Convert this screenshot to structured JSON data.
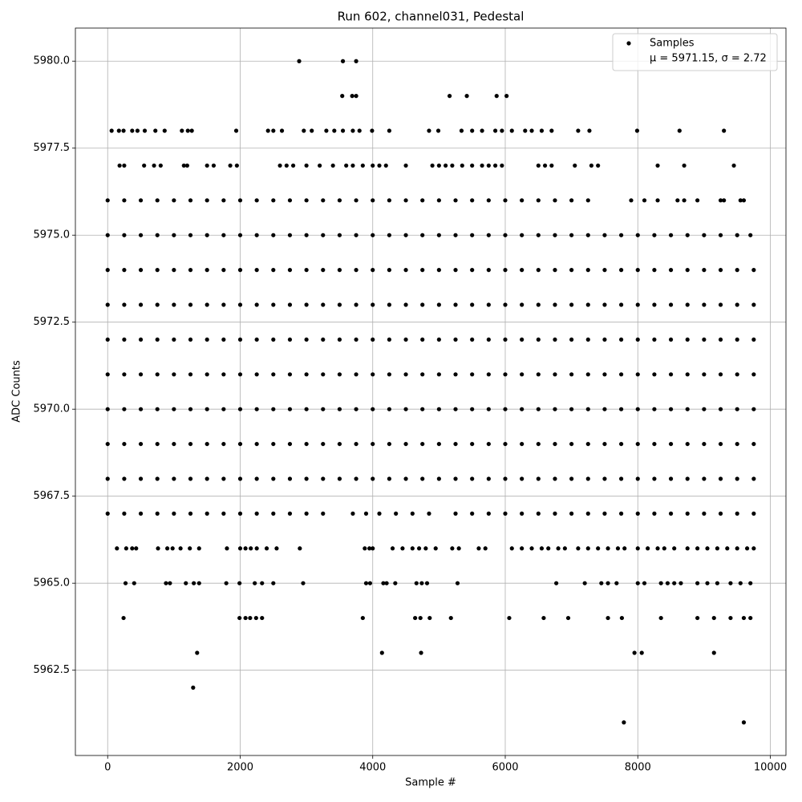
{
  "chart_data": {
    "type": "scatter",
    "title": "Run 602, channel031, Pedestal",
    "x_label": "Sample #",
    "y_label": "ADC Counts",
    "xlim": [
      -487,
      10236
    ],
    "ylim": [
      5960.05,
      5980.95
    ],
    "xticks": [
      0,
      2000,
      4000,
      6000,
      8000,
      10000
    ],
    "yticks": [
      {
        "value": 5962.5,
        "label": "5962.5"
      },
      {
        "value": 5965,
        "label": "5965.0"
      },
      {
        "value": 5967.5,
        "label": "5967.5"
      },
      {
        "value": 5970,
        "label": "5970.0"
      },
      {
        "value": 5972.5,
        "label": "5972.5"
      },
      {
        "value": 5975,
        "label": "5975.0"
      },
      {
        "value": 5977.5,
        "label": "5977.5"
      },
      {
        "value": 5980,
        "label": "5980.0"
      }
    ],
    "grid": true,
    "legend": "upper right",
    "legend_note": "μ = 5971.15, σ = 2.72",
    "x": [
      0,
      250,
      500,
      750,
      1000,
      1250,
      1500,
      1750,
      2000,
      2250,
      2500,
      2750,
      3000,
      3250,
      3500,
      3750,
      4000,
      4250,
      4500,
      4750,
      5000,
      5250,
      5500,
      5750,
      6000,
      6250,
      6500,
      6750,
      7000,
      7250,
      7500,
      7750,
      8000,
      8250,
      8500,
      8750,
      9000,
      9250,
      9500,
      9750,
      0,
      250,
      500,
      750,
      1000,
      1250,
      1500,
      1750,
      2000,
      2250,
      2500,
      2750,
      3000,
      3250,
      3500,
      3750,
      4000,
      4250,
      4500,
      4750,
      5000,
      5250,
      5500,
      5750,
      6000,
      6250,
      6500,
      6750,
      7000,
      7250,
      7500,
      7750,
      8000,
      8250,
      8500,
      8750,
      9000,
      9250,
      9500,
      9750,
      0,
      250,
      500,
      750,
      1000,
      1250,
      1500,
      1750,
      2000,
      2250,
      2500,
      2750,
      3000,
      3250,
      3500,
      3750,
      4000,
      4250,
      4500,
      4750,
      5000,
      5250,
      5500,
      5750,
      6000,
      6250,
      6500,
      6750,
      7000,
      7250,
      7500,
      7750,
      8000,
      8250,
      8500,
      8750,
      9000,
      9250,
      9500,
      9750,
      0,
      250,
      500,
      750,
      1000,
      1250,
      1500,
      1750,
      2000,
      2250,
      2500,
      2750,
      3000,
      3250,
      3500,
      3750,
      4000,
      4250,
      4500,
      4750,
      5000,
      5250,
      5500,
      5750,
      6000,
      6250,
      6500,
      6750,
      7000,
      7250,
      7500,
      7750,
      8000,
      8250,
      8500,
      8750,
      9000,
      9250,
      9500,
      9750,
      0,
      250,
      500,
      750,
      1000,
      1250,
      1500,
      1750,
      2000,
      2250,
      2500,
      2750,
      3000,
      3250,
      3500,
      3750,
      4000,
      4250,
      4500,
      4750,
      5000,
      5250,
      5500,
      5750,
      6000,
      6250,
      6500,
      6750,
      7000,
      7250,
      7500,
      7750,
      8000,
      8250,
      8500,
      8750,
      9000,
      9250,
      9500,
      9750,
      0,
      250,
      500,
      750,
      1000,
      1250,
      1500,
      1750,
      2000,
      2250,
      2500,
      2750,
      3000,
      3250,
      3500,
      3750,
      4000,
      4250,
      4500,
      4750,
      5000,
      5250,
      5500,
      5750,
      6000,
      6250,
      6500,
      6750,
      7000,
      7250,
      7500,
      7750,
      8000,
      8250,
      8500,
      8750,
      9000,
      9250,
      9500,
      9750,
      0,
      250,
      500,
      750,
      1000,
      1250,
      1500,
      1750,
      2000,
      2250,
      2500,
      2750,
      3000,
      3250,
      3500,
      3750,
      4000,
      4250,
      4500,
      4750,
      5000,
      5250,
      5500,
      5750,
      6000,
      6250,
      6500,
      6750,
      7000,
      7250,
      7500,
      7750,
      8000,
      8250,
      8500,
      8750,
      9000,
      9250,
      9500,
      9750,
      0,
      250,
      500,
      750,
      1000,
      1250,
      1500,
      1750,
      2000,
      2250,
      2500,
      2750,
      3000,
      3250,
      3500,
      3750,
      4000,
      4250,
      4500,
      4750,
      5000,
      5250,
      5500,
      5750,
      6000,
      6250,
      6500,
      6750,
      7000,
      7250,
      7500,
      7750,
      8000,
      8250,
      8500,
      8750,
      9000,
      9250,
      9500,
      9700,
      0,
      250,
      500,
      750,
      1000,
      1250,
      1500,
      1750,
      2000,
      2250,
      2500,
      2750,
      3000,
      3250,
      3500,
      3750,
      4000,
      4250,
      4500,
      4750,
      5000,
      5250,
      5500,
      5750,
      6000,
      6250,
      6500,
      6750,
      7000,
      7250,
      7900,
      8100,
      8300,
      8600,
      8700,
      8900,
      9250,
      9300,
      9550,
      9600,
      0,
      250,
      500,
      750,
      1000,
      1250,
      1500,
      1750,
      2000,
      2250,
      2500,
      2750,
      3000,
      3250,
      3700,
      3900,
      4100,
      4350,
      4600,
      4850,
      5250,
      5500,
      5750,
      6000,
      6250,
      6500,
      6750,
      7000,
      7250,
      7500,
      7750,
      8000,
      8250,
      8500,
      8750,
      9000,
      9250,
      9500,
      9750,
      140,
      280,
      370,
      430,
      760,
      900,
      980,
      1100,
      1240,
      1380,
      1800,
      2000,
      2080,
      2160,
      2250,
      2400,
      2550,
      2900,
      3880,
      3950,
      4000,
      4300,
      4450,
      4600,
      4700,
      4800,
      4950,
      5200,
      5300,
      5600,
      5700,
      6100,
      6250,
      6400,
      6550,
      6650,
      6800,
      6900,
      7100,
      7250,
      7400,
      7550,
      7700,
      7800,
      8000,
      8150,
      8300,
      8400,
      8550,
      8750,
      8900,
      9050,
      9200,
      9350,
      9500,
      9650,
      9750,
      270,
      400,
      880,
      940,
      1180,
      1300,
      1380,
      1790,
      1990,
      2220,
      2330,
      2500,
      2950,
      3900,
      3960,
      4160,
      4210,
      4340,
      4660,
      4740,
      4820,
      5280,
      6770,
      7200,
      7450,
      7550,
      7680,
      8000,
      8100,
      8350,
      8450,
      8550,
      8650,
      8900,
      9050,
      9200,
      9400,
      9550,
      9700,
      240,
      1990,
      2080,
      2150,
      2240,
      2330,
      3850,
      4640,
      4720,
      4860,
      5180,
      6060,
      6580,
      6950,
      7550,
      7760,
      8350,
      8900,
      9150,
      9400,
      9600,
      9700,
      1350,
      4140,
      4730,
      7950,
      8060,
      9150,
      1290,
      7790,
      9600,
      180,
      250,
      550,
      700,
      800,
      1150,
      1200,
      1500,
      1600,
      1850,
      1950,
      2600,
      2700,
      2800,
      3000,
      3200,
      3400,
      3600,
      3700,
      3850,
      4000,
      4100,
      4200,
      4500,
      4900,
      5000,
      5100,
      5200,
      5350,
      5500,
      5650,
      5750,
      5850,
      5950,
      6500,
      6600,
      6700,
      7050,
      7300,
      7400,
      8300,
      8700,
      9450,
      60,
      170,
      240,
      370,
      450,
      560,
      720,
      860,
      1120,
      1210,
      1270,
      1940,
      2420,
      2500,
      2630,
      2960,
      3080,
      3300,
      3420,
      3550,
      3700,
      3800,
      3990,
      4250,
      4850,
      4990,
      5340,
      5500,
      5650,
      5850,
      5950,
      6100,
      6300,
      6400,
      6550,
      6700,
      7100,
      7270,
      7990,
      8630,
      9300,
      3540,
      3690,
      3750,
      5160,
      5420,
      5870,
      6020,
      2890,
      3550,
      3750
    ],
    "series": [
      {
        "name": "Samples",
        "color": "#000000",
        "values": [
          5968,
          5968,
          5968,
          5968,
          5968,
          5968,
          5968,
          5968,
          5968,
          5968,
          5968,
          5968,
          5968,
          5968,
          5968,
          5968,
          5968,
          5968,
          5968,
          5968,
          5968,
          5968,
          5968,
          5968,
          5968,
          5968,
          5968,
          5968,
          5968,
          5968,
          5968,
          5968,
          5968,
          5968,
          5968,
          5968,
          5968,
          5968,
          5968,
          5968,
          5969,
          5969,
          5969,
          5969,
          5969,
          5969,
          5969,
          5969,
          5969,
          5969,
          5969,
          5969,
          5969,
          5969,
          5969,
          5969,
          5969,
          5969,
          5969,
          5969,
          5969,
          5969,
          5969,
          5969,
          5969,
          5969,
          5969,
          5969,
          5969,
          5969,
          5969,
          5969,
          5969,
          5969,
          5969,
          5969,
          5969,
          5969,
          5969,
          5969,
          5970,
          5970,
          5970,
          5970,
          5970,
          5970,
          5970,
          5970,
          5970,
          5970,
          5970,
          5970,
          5970,
          5970,
          5970,
          5970,
          5970,
          5970,
          5970,
          5970,
          5970,
          5970,
          5970,
          5970,
          5970,
          5970,
          5970,
          5970,
          5970,
          5970,
          5970,
          5970,
          5970,
          5970,
          5970,
          5970,
          5970,
          5970,
          5970,
          5970,
          5971,
          5971,
          5971,
          5971,
          5971,
          5971,
          5971,
          5971,
          5971,
          5971,
          5971,
          5971,
          5971,
          5971,
          5971,
          5971,
          5971,
          5971,
          5971,
          5971,
          5971,
          5971,
          5971,
          5971,
          5971,
          5971,
          5971,
          5971,
          5971,
          5971,
          5971,
          5971,
          5971,
          5971,
          5971,
          5971,
          5971,
          5971,
          5971,
          5971,
          5972,
          5972,
          5972,
          5972,
          5972,
          5972,
          5972,
          5972,
          5972,
          5972,
          5972,
          5972,
          5972,
          5972,
          5972,
          5972,
          5972,
          5972,
          5972,
          5972,
          5972,
          5972,
          5972,
          5972,
          5972,
          5972,
          5972,
          5972,
          5972,
          5972,
          5972,
          5972,
          5972,
          5972,
          5972,
          5972,
          5972,
          5972,
          5972,
          5972,
          5973,
          5973,
          5973,
          5973,
          5973,
          5973,
          5973,
          5973,
          5973,
          5973,
          5973,
          5973,
          5973,
          5973,
          5973,
          5973,
          5973,
          5973,
          5973,
          5973,
          5973,
          5973,
          5973,
          5973,
          5973,
          5973,
          5973,
          5973,
          5973,
          5973,
          5973,
          5973,
          5973,
          5973,
          5973,
          5973,
          5973,
          5973,
          5973,
          5973,
          5974,
          5974,
          5974,
          5974,
          5974,
          5974,
          5974,
          5974,
          5974,
          5974,
          5974,
          5974,
          5974,
          5974,
          5974,
          5974,
          5974,
          5974,
          5974,
          5974,
          5974,
          5974,
          5974,
          5974,
          5974,
          5974,
          5974,
          5974,
          5974,
          5974,
          5974,
          5974,
          5974,
          5974,
          5974,
          5974,
          5974,
          5974,
          5974,
          5974,
          5975,
          5975,
          5975,
          5975,
          5975,
          5975,
          5975,
          5975,
          5975,
          5975,
          5975,
          5975,
          5975,
          5975,
          5975,
          5975,
          5975,
          5975,
          5975,
          5975,
          5975,
          5975,
          5975,
          5975,
          5975,
          5975,
          5975,
          5975,
          5975,
          5975,
          5975,
          5975,
          5975,
          5975,
          5975,
          5975,
          5975,
          5975,
          5975,
          5975,
          5976,
          5976,
          5976,
          5976,
          5976,
          5976,
          5976,
          5976,
          5976,
          5976,
          5976,
          5976,
          5976,
          5976,
          5976,
          5976,
          5976,
          5976,
          5976,
          5976,
          5976,
          5976,
          5976,
          5976,
          5976,
          5976,
          5976,
          5976,
          5976,
          5976,
          5976,
          5976,
          5976,
          5976,
          5976,
          5976,
          5976,
          5976,
          5976,
          5976,
          5967,
          5967,
          5967,
          5967,
          5967,
          5967,
          5967,
          5967,
          5967,
          5967,
          5967,
          5967,
          5967,
          5967,
          5967,
          5967,
          5967,
          5967,
          5967,
          5967,
          5967,
          5967,
          5967,
          5967,
          5967,
          5967,
          5967,
          5967,
          5967,
          5967,
          5967,
          5967,
          5967,
          5967,
          5967,
          5967,
          5967,
          5967,
          5967,
          5966,
          5966,
          5966,
          5966,
          5966,
          5966,
          5966,
          5966,
          5966,
          5966,
          5966,
          5966,
          5966,
          5966,
          5966,
          5966,
          5966,
          5966,
          5966,
          5966,
          5966,
          5966,
          5966,
          5966,
          5966,
          5966,
          5966,
          5966,
          5966,
          5966,
          5966,
          5966,
          5966,
          5966,
          5966,
          5966,
          5966,
          5966,
          5966,
          5966,
          5966,
          5966,
          5966,
          5966,
          5966,
          5966,
          5966,
          5966,
          5966,
          5966,
          5966,
          5966,
          5966,
          5966,
          5966,
          5966,
          5966,
          5965,
          5965,
          5965,
          5965,
          5965,
          5965,
          5965,
          5965,
          5965,
          5965,
          5965,
          5965,
          5965,
          5965,
          5965,
          5965,
          5965,
          5965,
          5965,
          5965,
          5965,
          5965,
          5965,
          5965,
          5965,
          5965,
          5965,
          5965,
          5965,
          5965,
          5965,
          5965,
          5965,
          5965,
          5965,
          5965,
          5965,
          5965,
          5965,
          5964,
          5964,
          5964,
          5964,
          5964,
          5964,
          5964,
          5964,
          5964,
          5964,
          5964,
          5964,
          5964,
          5964,
          5964,
          5964,
          5964,
          5964,
          5964,
          5964,
          5964,
          5964,
          5963,
          5963,
          5963,
          5963,
          5963,
          5963,
          5962,
          5961,
          5961,
          5977,
          5977,
          5977,
          5977,
          5977,
          5977,
          5977,
          5977,
          5977,
          5977,
          5977,
          5977,
          5977,
          5977,
          5977,
          5977,
          5977,
          5977,
          5977,
          5977,
          5977,
          5977,
          5977,
          5977,
          5977,
          5977,
          5977,
          5977,
          5977,
          5977,
          5977,
          5977,
          5977,
          5977,
          5977,
          5977,
          5977,
          5977,
          5977,
          5977,
          5977,
          5977,
          5977,
          5978,
          5978,
          5978,
          5978,
          5978,
          5978,
          5978,
          5978,
          5978,
          5978,
          5978,
          5978,
          5978,
          5978,
          5978,
          5978,
          5978,
          5978,
          5978,
          5978,
          5978,
          5978,
          5978,
          5978,
          5978,
          5978,
          5978,
          5978,
          5978,
          5978,
          5978,
          5978,
          5978,
          5978,
          5978,
          5978,
          5978,
          5978,
          5978,
          5978,
          5978,
          5979,
          5979,
          5979,
          5979,
          5979,
          5979,
          5979,
          5980,
          5980,
          5980
        ]
      }
    ]
  }
}
